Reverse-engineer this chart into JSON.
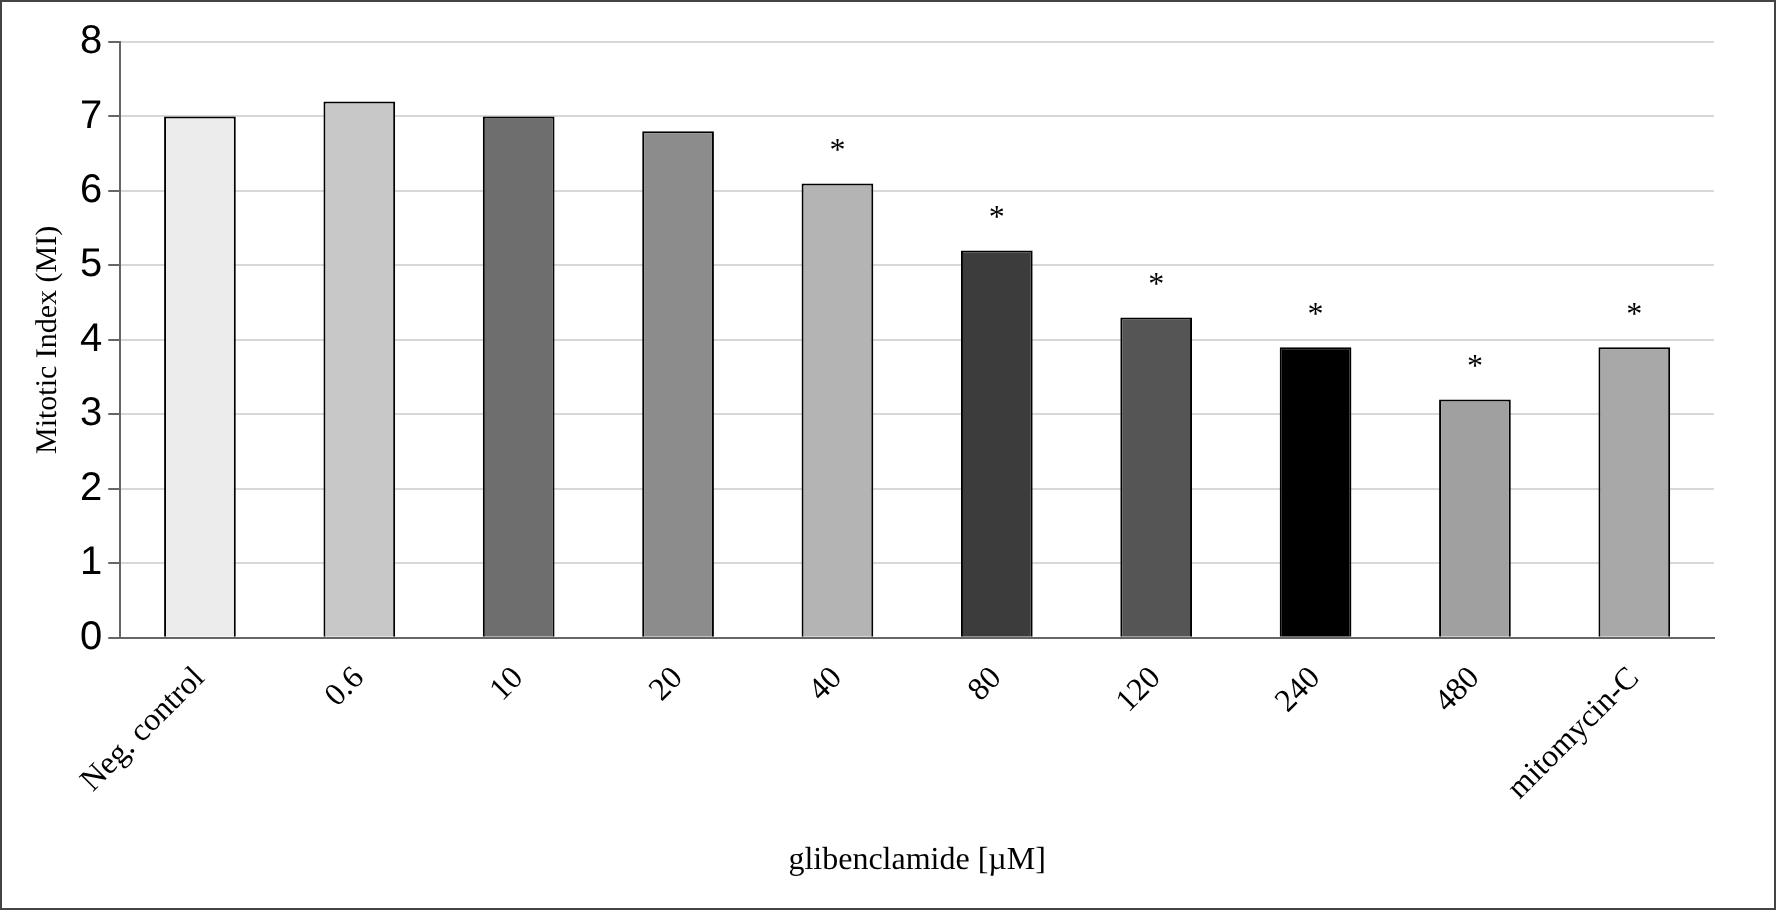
{
  "chart_data": {
    "type": "bar",
    "xlabel": "glibenclamide [µM]",
    "ylabel": "Mitotic Index (MI)",
    "categories": [
      "Neg. control",
      "0.6",
      "10",
      "20",
      "40",
      "80",
      "120",
      "240",
      "480",
      "mitomycin-C"
    ],
    "values": [
      7.0,
      7.2,
      7.0,
      6.8,
      6.1,
      5.2,
      4.3,
      3.9,
      3.2,
      3.9
    ],
    "colors": [
      "#ececec",
      "#c8c8c8",
      "#6e6e6e",
      "#8c8c8c",
      "#b4b4b4",
      "#3c3c3c",
      "#555555",
      "#000000",
      "#a0a0a0",
      "#a8a8a8"
    ],
    "ylim": [
      0,
      8
    ],
    "yticks": [
      0,
      1,
      2,
      3,
      4,
      5,
      6,
      7,
      8
    ],
    "grid": "y",
    "annotations": [
      {
        "text": "*",
        "x": "40",
        "y": 6.1
      },
      {
        "text": "*",
        "x": "80",
        "y": 5.2
      },
      {
        "text": "*",
        "x": "120",
        "y": 4.3
      },
      {
        "text": "*",
        "x": "240",
        "y": 3.9
      },
      {
        "text": "*",
        "x": "480",
        "y": 3.2
      },
      {
        "text": "*",
        "x": "mitomycin-C",
        "y": 3.9
      }
    ]
  }
}
